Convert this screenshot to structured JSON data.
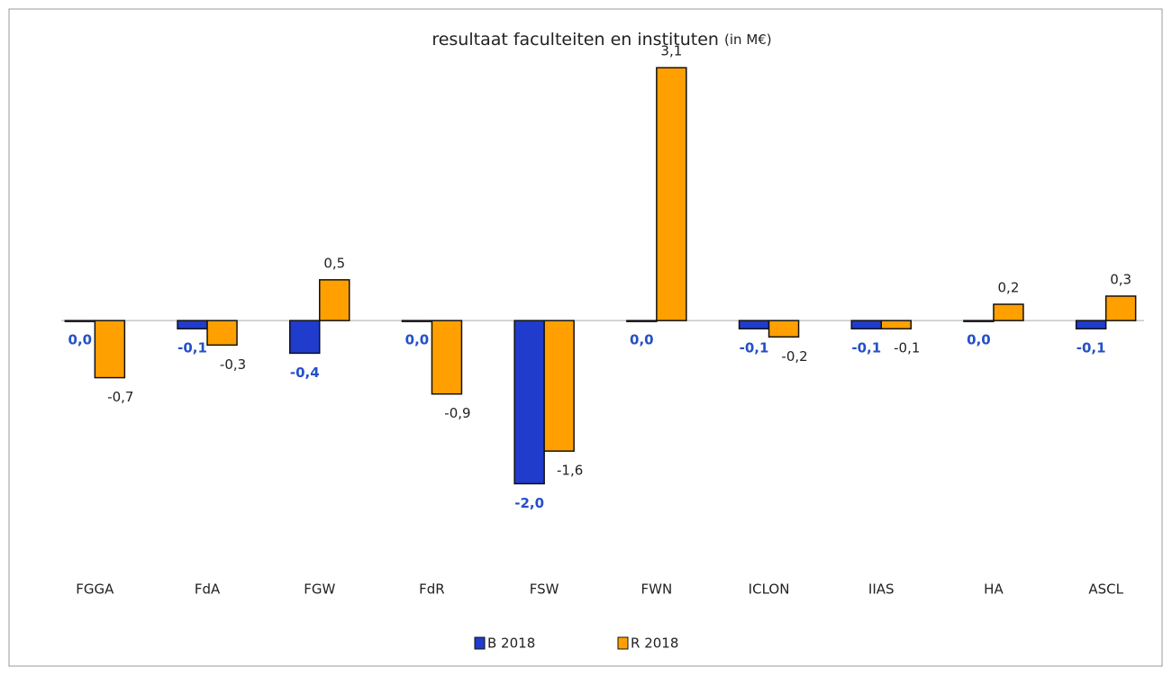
{
  "chart_data": {
    "type": "bar",
    "title": "resultaat faculteiten en instituten",
    "subtitle": "(in M€)",
    "categories": [
      "FGGA",
      "FdA",
      "FGW",
      "FdR",
      "FSW",
      "FWN",
      "ICLON",
      "IIAS",
      "HA",
      "ASCL"
    ],
    "series": [
      {
        "name": "B 2018",
        "color": "#1f3ccc",
        "label_color": "#2450c8",
        "values": [
          0.0,
          -0.1,
          -0.4,
          0.0,
          -2.0,
          0.0,
          -0.1,
          -0.1,
          0.0,
          -0.1
        ],
        "value_labels": [
          "0,0",
          "-0,1",
          "-0,4",
          "0,0",
          "-2,0",
          "0,0",
          "-0,1",
          "-0,1",
          "0,0",
          "-0,1"
        ]
      },
      {
        "name": "R 2018",
        "color": "#ffa000",
        "label_color": "#222222",
        "values": [
          -0.7,
          -0.3,
          0.5,
          -0.9,
          -1.6,
          3.1,
          -0.2,
          -0.1,
          0.2,
          0.3
        ],
        "value_labels": [
          "-0,7",
          "-0,3",
          "0,5",
          "-0,9",
          "-1,6",
          "3,1",
          "-0,2",
          "-0,1",
          "0,2",
          "0,3"
        ]
      }
    ],
    "ylim": [
      -3,
      3.5
    ],
    "grid": false,
    "legend": "bottom"
  }
}
